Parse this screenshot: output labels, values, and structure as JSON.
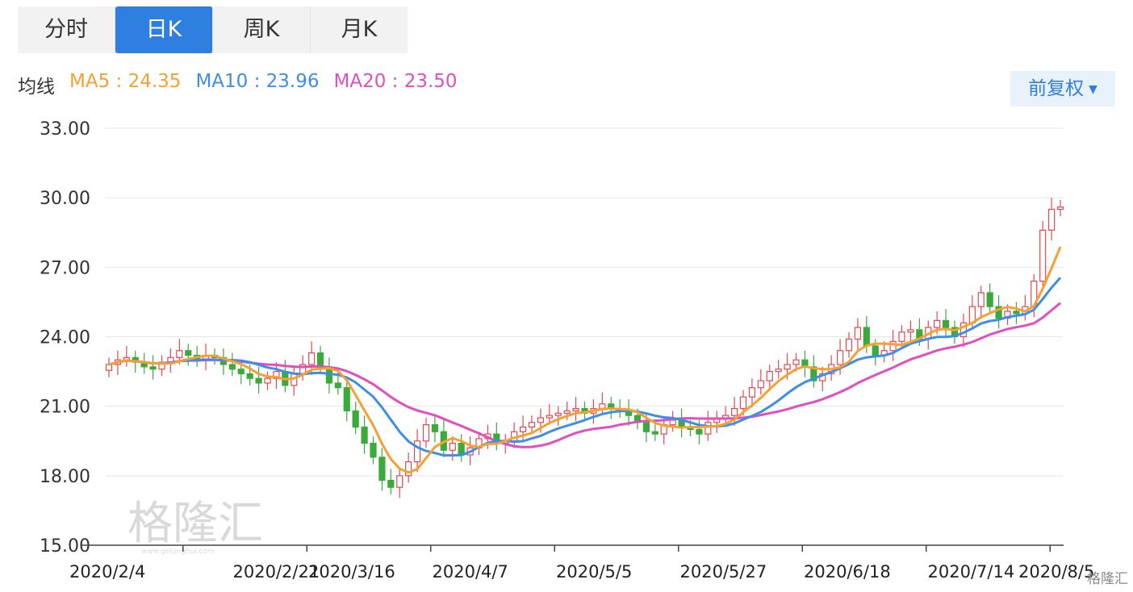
{
  "tabs": [
    {
      "label": "分时",
      "active": false
    },
    {
      "label": "日K",
      "active": true
    },
    {
      "label": "周K",
      "active": false
    },
    {
      "label": "月K",
      "active": false
    }
  ],
  "ma": {
    "label": "均线",
    "ma5": {
      "text": "MA5 : 24.35",
      "color": "#f5a033"
    },
    "ma10": {
      "text": "MA10 : 23.96",
      "color": "#3d8ee8"
    },
    "ma20": {
      "text": "MA20 : 23.50",
      "color": "#e04ec0"
    }
  },
  "adjust": {
    "label": "前复权"
  },
  "watermark": {
    "text": "格隆汇",
    "sub": "www.gelonghui.com"
  },
  "corner_logo": "格隆汇",
  "colors": {
    "up": "#e8474f",
    "down": "#3aaa3a",
    "grid": "#e6e6e6",
    "active_tab": "#2f7fe0"
  },
  "chart_data": {
    "type": "candlestick",
    "ylim": [
      15,
      33
    ],
    "yticks": [
      "33.00",
      "30.00",
      "27.00",
      "24.00",
      "21.00",
      "18.00",
      "15.00"
    ],
    "xticks": [
      "2020/2/4",
      "2020/2/21",
      "2020/3/16",
      "2020/4/7",
      "2020/5/5",
      "2020/5/27",
      "2020/6/18",
      "2020/7/14",
      "2020/8/5"
    ],
    "closes": [
      22.8,
      23.0,
      23.1,
      22.9,
      22.7,
      22.6,
      22.9,
      23.1,
      23.4,
      23.2,
      23.0,
      23.2,
      23.1,
      22.8,
      22.6,
      22.4,
      22.2,
      22.0,
      22.2,
      22.5,
      21.9,
      22.4,
      22.8,
      23.3,
      22.7,
      22.0,
      21.8,
      20.8,
      20.1,
      19.4,
      18.8,
      17.8,
      17.5,
      18.0,
      18.6,
      19.5,
      20.2,
      19.9,
      19.1,
      19.4,
      18.9,
      19.2,
      19.6,
      19.8,
      19.4,
      19.5,
      19.9,
      20.1,
      20.3,
      20.5,
      20.6,
      20.7,
      20.8,
      20.9,
      20.7,
      20.9,
      21.1,
      20.9,
      20.8,
      20.6,
      20.3,
      19.9,
      19.8,
      20.2,
      20.4,
      20.1,
      20.0,
      19.8,
      20.3,
      20.5,
      20.6,
      20.9,
      21.4,
      21.8,
      22.1,
      22.5,
      22.6,
      22.8,
      23.0,
      22.7,
      22.1,
      22.4,
      22.8,
      23.4,
      23.9,
      24.4,
      23.6,
      23.2,
      23.4,
      23.8,
      24.2,
      24.3,
      23.9,
      24.4,
      24.7,
      24.4,
      24.0,
      24.6,
      25.3,
      25.9,
      25.3,
      24.8,
      25.1,
      25.0,
      25.3,
      26.4,
      28.6,
      29.5,
      29.6
    ]
  }
}
